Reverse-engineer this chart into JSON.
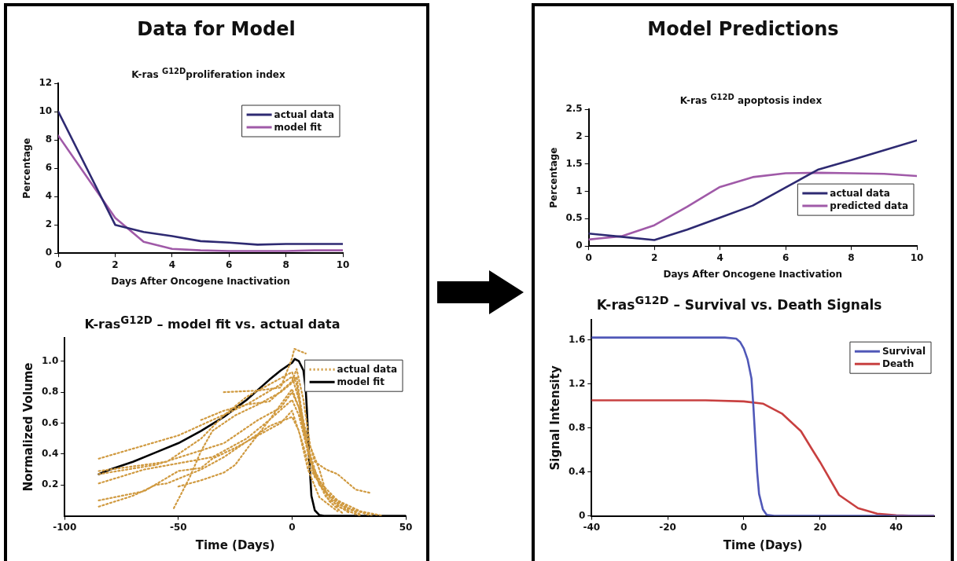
{
  "chart_data": [
    {
      "type": "line",
      "title": "Data for Model",
      "subtitle": "K-ras $^{G12D}$proliferation index",
      "xlabel": "Days After Oncogene Inactivation",
      "ylabel": "Percentage",
      "x": [
        0,
        2,
        3,
        4,
        5,
        6,
        7,
        8,
        9,
        10
      ],
      "xlim": [
        0,
        10
      ],
      "xticks": [
        0,
        2,
        4,
        6,
        8,
        10
      ],
      "ylim": [
        0,
        12
      ],
      "yticks": [
        0,
        2,
        4,
        6,
        8,
        10,
        12
      ],
      "grid": false,
      "legend": "top right",
      "marker": "none",
      "series": [
        {
          "name": "actual data",
          "color": "#2e2a72",
          "values": [
            10,
            2,
            1.5,
            1.2,
            0.85,
            0.75,
            0.6,
            0.65,
            0.65,
            0.65
          ]
        },
        {
          "name": "model fit",
          "color": "#a05aa8",
          "values": [
            8.3,
            2.5,
            0.8,
            0.3,
            0.2,
            0.15,
            0.15,
            0.15,
            0.2,
            0.2
          ]
        }
      ]
    },
    {
      "type": "line",
      "title": "K-ras$^{G12D}$ – model fit vs. actual data",
      "xlabel": "Time (Days)",
      "ylabel": "Normalized Volume",
      "xlim": [
        -100,
        50
      ],
      "xticks": [
        -100,
        -50,
        0,
        50
      ],
      "ylim": [
        0,
        1.15
      ],
      "yticks": [
        {
          "value": 0.2,
          "label": "0.2"
        },
        {
          "value": 0.4,
          "label": "0.4"
        },
        {
          "value": 0.6,
          "label": "0.6"
        },
        {
          "value": 0.8,
          "label": "0.8"
        },
        {
          "value": 1,
          "label": "1.0"
        }
      ],
      "grid": false,
      "legend": "top right",
      "marker": "none",
      "series": [
        {
          "name": "actual data",
          "color": "#d09a40",
          "line_style": "dotted",
          "x": [
            -85,
            -50,
            -35,
            -20,
            -5,
            0,
            3,
            6,
            10,
            15,
            20,
            28,
            34,
            null,
            -85,
            -65,
            -55,
            -40,
            -30,
            -20,
            -10,
            0,
            2,
            6,
            10,
            20,
            30,
            40,
            null,
            -85,
            -60,
            -45,
            -30,
            -15,
            -5,
            0,
            3,
            7,
            12,
            20,
            30,
            null,
            -85,
            -65,
            -50,
            -35,
            -20,
            -10,
            0,
            3,
            8,
            15,
            25,
            null,
            -85,
            -65,
            -50,
            -40,
            -35,
            -25,
            -15,
            -5,
            0,
            4,
            8,
            15,
            25,
            35,
            null,
            -85,
            -70,
            -60,
            -55,
            -40,
            -30,
            -20,
            -10,
            0,
            3,
            7,
            12,
            20,
            null,
            -52,
            -45,
            -40,
            -35,
            -25,
            -15,
            -5,
            0,
            2,
            5,
            9,
            15,
            25,
            null,
            -50,
            -40,
            -30,
            -25,
            -20,
            -10,
            0,
            3,
            6,
            12,
            20,
            30,
            null,
            -30,
            -15,
            -5,
            0,
            1,
            6,
            null,
            -40,
            -30,
            -20,
            -10,
            0,
            2,
            5,
            8,
            12,
            16,
            22
          ],
          "values": [
            0.37,
            0.52,
            0.62,
            0.72,
            0.85,
            0.9,
            0.75,
            0.55,
            0.35,
            0.3,
            0.27,
            0.17,
            0.15,
            null,
            0.29,
            0.33,
            0.35,
            0.5,
            0.65,
            0.77,
            0.85,
            0.93,
            0.85,
            0.5,
            0.25,
            0.1,
            0.03,
            0,
            null,
            0.27,
            0.33,
            0.4,
            0.47,
            0.62,
            0.7,
            0.8,
            0.7,
            0.4,
            0.2,
            0.08,
            0.01,
            null,
            0.21,
            0.3,
            0.34,
            0.38,
            0.5,
            0.62,
            0.75,
            0.65,
            0.35,
            0.15,
            0.03,
            null,
            0.1,
            0.16,
            0.29,
            0.31,
            0.37,
            0.44,
            0.52,
            0.6,
            0.68,
            0.5,
            0.3,
            0.15,
            0.05,
            0,
            null,
            0.06,
            0.13,
            0.2,
            0.21,
            0.3,
            0.38,
            0.48,
            0.58,
            0.64,
            0.55,
            0.3,
            0.12,
            0.03,
            null,
            0.05,
            0.25,
            0.42,
            0.55,
            0.65,
            0.72,
            0.8,
            0.86,
            0.9,
            0.6,
            0.3,
            0.12,
            0.02,
            null,
            0.19,
            0.23,
            0.28,
            0.33,
            0.43,
            0.62,
            0.82,
            0.7,
            0.5,
            0.2,
            0.06,
            0,
            null,
            0.8,
            0.81,
            0.83,
            1.02,
            1.08,
            1.05,
            null,
            0.62,
            0.68,
            0.72,
            0.74,
            0.87,
            0.95,
            0.75,
            0.45,
            0.3,
            0.1,
            0.02
          ]
        },
        {
          "name": "model fit",
          "color": "#000000",
          "x": [
            -85,
            -80,
            -70,
            -60,
            -50,
            -40,
            -30,
            -20,
            -10,
            -5,
            0,
            1.2,
            3,
            5,
            6,
            6.5,
            7.5,
            8.5,
            10,
            12,
            14,
            20,
            50
          ],
          "values": [
            0.27,
            0.3,
            0.35,
            0.41,
            0.47,
            0.55,
            0.64,
            0.75,
            0.88,
            0.94,
            0.99,
            1.015,
            1.0,
            0.94,
            0.82,
            0.69,
            0.38,
            0.13,
            0.036,
            0.005,
            0,
            0,
            0
          ]
        }
      ]
    },
    {
      "type": "line",
      "title": "Model Predictions",
      "subtitle": "K-ras $^{G12D}$ apoptosis index",
      "xlabel": "Days After Oncogene Inactivation",
      "ylabel": "Percentage",
      "x": [
        0,
        1,
        2,
        3,
        4,
        5,
        6,
        7,
        8,
        9,
        10
      ],
      "xlim": [
        0,
        10
      ],
      "xticks": [
        0,
        2,
        4,
        6,
        8,
        10
      ],
      "ylim": [
        0,
        2.5
      ],
      "yticks": [
        0,
        0.5,
        1,
        1.5,
        2,
        2.5
      ],
      "grid": false,
      "legend": "right",
      "marker": "none",
      "series": [
        {
          "name": "actual data",
          "color": "#2e2a72",
          "values": [
            0.23,
            0.17,
            0.11,
            0.3,
            0.52,
            0.74,
            1.07,
            1.4,
            1.57,
            1.75,
            1.93
          ]
        },
        {
          "name": "predicted data",
          "color": "#a05aa8",
          "values": [
            0.12,
            0.18,
            0.38,
            0.72,
            1.08,
            1.26,
            1.33,
            1.34,
            1.33,
            1.32,
            1.28
          ]
        }
      ]
    },
    {
      "type": "line",
      "title": "K-ras$^{G12D}$ – Survival vs. Death Signals",
      "xlabel": "Time (Days)",
      "ylabel": "Signal Intensity",
      "xlim": [
        -40,
        50
      ],
      "xticks": [
        -40,
        -20,
        0,
        20,
        40
      ],
      "ylim": [
        0,
        1.78
      ],
      "yticks": [
        0,
        0.4,
        0.8,
        1.2,
        1.6
      ],
      "grid": false,
      "legend": "top right",
      "marker": "none",
      "series": [
        {
          "name": "Survival",
          "color": "#5058b8",
          "x": [
            -40,
            -5,
            -2,
            -1,
            0,
            1,
            2,
            2.5,
            3,
            3.5,
            4,
            5,
            6,
            8,
            50
          ],
          "values": [
            1.62,
            1.62,
            1.61,
            1.58,
            1.52,
            1.42,
            1.25,
            1,
            0.7,
            0.4,
            0.2,
            0.06,
            0.01,
            0,
            0
          ]
        },
        {
          "name": "Death",
          "color": "#c84040",
          "x": [
            -40,
            -10,
            0,
            5,
            10,
            15,
            18,
            20,
            25,
            30,
            35,
            40,
            45,
            50
          ],
          "values": [
            1.05,
            1.05,
            1.04,
            1.02,
            0.93,
            0.77,
            0.6,
            0.49,
            0.19,
            0.07,
            0.02,
            0.005,
            0,
            0
          ]
        }
      ]
    }
  ]
}
